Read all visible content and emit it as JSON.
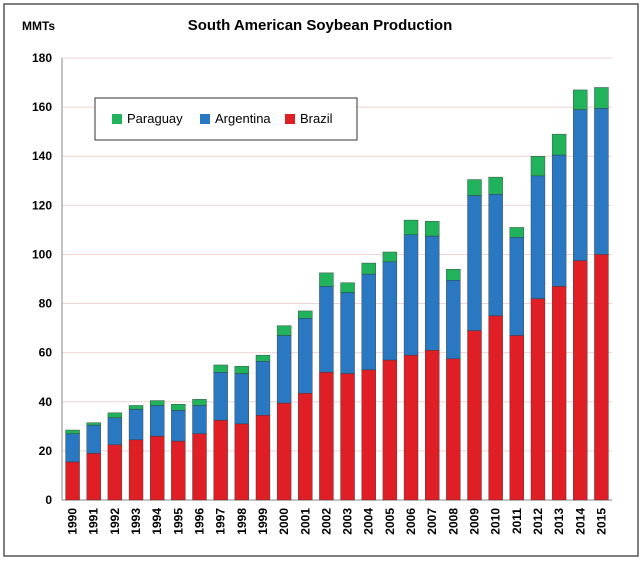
{
  "chart_data": {
    "type": "stacked_bar",
    "title": "South American Soybean Production",
    "y_label": "MMTs",
    "categories": [
      "1990",
      "1991",
      "1992",
      "1993",
      "1994",
      "1995",
      "1996",
      "1997",
      "1998",
      "1999",
      "2000",
      "2001",
      "2002",
      "2003",
      "2004",
      "2005",
      "2006",
      "2007",
      "2008",
      "2009",
      "2010",
      "2011",
      "2012",
      "2013",
      "2014",
      "2015"
    ],
    "series": [
      {
        "name": "Brazil",
        "color": "#e01e26",
        "values": [
          15.5,
          19,
          22.5,
          24.5,
          26,
          24,
          27,
          32.5,
          31,
          34.5,
          39.5,
          43.5,
          52,
          51.5,
          53,
          57,
          59,
          61,
          57.5,
          69,
          75,
          67,
          82,
          87,
          97.5,
          100
        ]
      },
      {
        "name": "Argentina",
        "color": "#2a78c2",
        "values": [
          11.5,
          11.5,
          11,
          12.5,
          12.5,
          12.5,
          11.5,
          19.5,
          20.5,
          22,
          27.5,
          30.5,
          35,
          33,
          39,
          40,
          49,
          46.5,
          32,
          55,
          49.5,
          40,
          50,
          53.5,
          61.5,
          59.5
        ]
      },
      {
        "name": "Paraguay",
        "color": "#21b35b",
        "values": [
          1.5,
          1,
          2,
          1.5,
          2,
          2.5,
          2.5,
          3,
          3,
          2.5,
          4,
          3,
          5.5,
          4,
          4.5,
          4,
          6,
          6,
          4.5,
          6.5,
          7,
          4,
          8,
          8.5,
          8,
          8.5
        ]
      }
    ],
    "ylim": [
      0,
      180
    ],
    "yticks": [
      0,
      20,
      40,
      60,
      80,
      100,
      120,
      140,
      160,
      180
    ],
    "grid": true,
    "legend": "top-left"
  }
}
